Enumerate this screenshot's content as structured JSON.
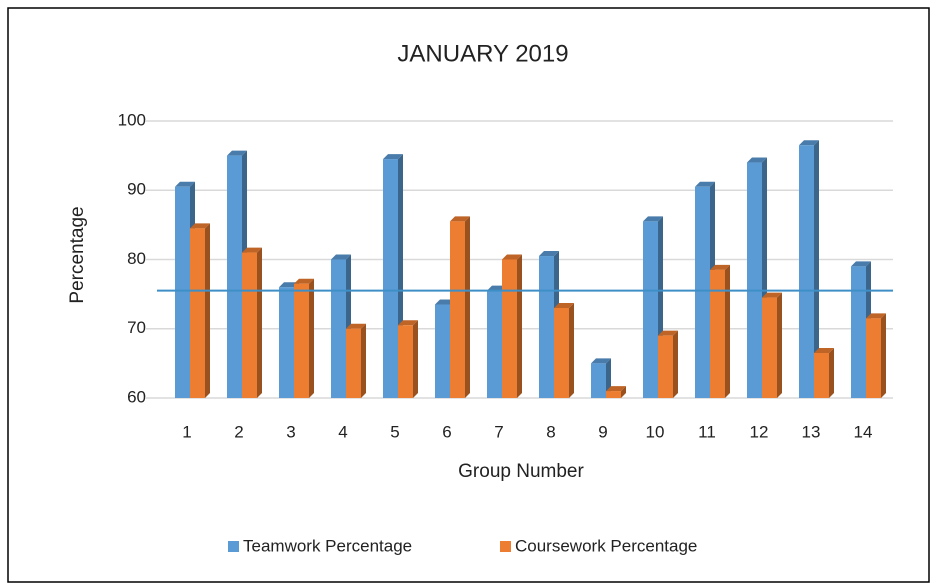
{
  "chart_data": {
    "type": "bar",
    "title": "JANUARY 2019",
    "x_label": "Group Number",
    "y_label": "Percentage",
    "categories": [
      "1",
      "2",
      "3",
      "4",
      "5",
      "6",
      "7",
      "8",
      "9",
      "10",
      "11",
      "12",
      "13",
      "14"
    ],
    "series": [
      {
        "name": "Teamwork Percentage",
        "color": "#5b9bd5",
        "values": [
          90.5,
          95,
          76,
          80,
          94.5,
          73.5,
          75.5,
          80.5,
          65,
          85.5,
          90.5,
          94,
          96.5,
          79
        ]
      },
      {
        "name": "Coursework Percentage",
        "color": "#ed7d31",
        "values": [
          84.5,
          81,
          76.5,
          70,
          70.5,
          85.5,
          80,
          73,
          61,
          69,
          78.5,
          74.5,
          66.5,
          71.5
        ]
      }
    ],
    "reference_line": {
      "value": 75.5,
      "color": "#3d8fc6"
    },
    "ylim": [
      60,
      100
    ],
    "yticks": [
      60,
      70,
      80,
      90,
      100
    ],
    "grid": true,
    "legend": "bottom"
  }
}
